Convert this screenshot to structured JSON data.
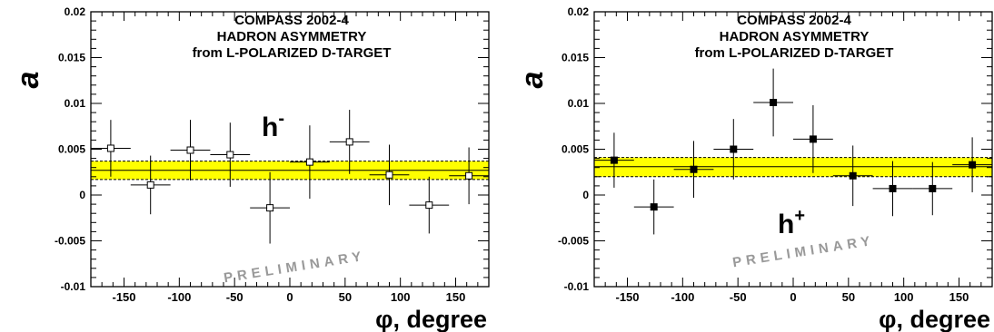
{
  "chart_data": [
    {
      "type": "scatter",
      "header": [
        "COMPASS 2002-4",
        "HADRON ASYMMETRY",
        "from L-POLARIZED D-TARGET"
      ],
      "ylabel": "a",
      "xlabel": "φ, degree",
      "particle": "h",
      "charge": "-",
      "watermark": "PRELIMINARY",
      "marker": "open-square",
      "xlim": [
        -180,
        180
      ],
      "ylim": [
        -0.01,
        0.02
      ],
      "xticks": [
        -150,
        -100,
        -50,
        0,
        50,
        100,
        150
      ],
      "yticks": [
        -0.01,
        -0.005,
        0,
        0.005,
        0.01,
        0.015,
        0.02
      ],
      "ytick_labels": [
        "-0.01",
        "-0.005",
        "0",
        "0.005",
        "0.01",
        "0.015",
        "0.02"
      ],
      "fit": {
        "mean": 0.0027,
        "band": [
          0.0017,
          0.0037
        ],
        "band_color": "#ffff00"
      },
      "points": [
        {
          "x": -162,
          "y": 0.0051,
          "xerr": 18,
          "yerr": 0.0031
        },
        {
          "x": -126,
          "y": 0.0011,
          "xerr": 18,
          "yerr": 0.0032
        },
        {
          "x": -90,
          "y": 0.0049,
          "xerr": 18,
          "yerr": 0.0033
        },
        {
          "x": -54,
          "y": 0.0044,
          "xerr": 18,
          "yerr": 0.0035
        },
        {
          "x": -18,
          "y": -0.0014,
          "xerr": 18,
          "yerr": 0.0039
        },
        {
          "x": 18,
          "y": 0.0036,
          "xerr": 18,
          "yerr": 0.004
        },
        {
          "x": 54,
          "y": 0.0058,
          "xerr": 18,
          "yerr": 0.0035
        },
        {
          "x": 90,
          "y": 0.0022,
          "xerr": 18,
          "yerr": 0.0033
        },
        {
          "x": 126,
          "y": -0.0011,
          "xerr": 18,
          "yerr": 0.0031
        },
        {
          "x": 162,
          "y": 0.0021,
          "xerr": 18,
          "yerr": 0.0031
        }
      ]
    },
    {
      "type": "scatter",
      "header": [
        "COMPASS 2002-4",
        "HADRON ASYMMETRY",
        "from L-POLARIZED D-TARGET"
      ],
      "ylabel": "a",
      "xlabel": "φ, degree",
      "particle": "h",
      "charge": "+",
      "watermark": "PRELIMINARY",
      "marker": "filled-square",
      "xlim": [
        -180,
        180
      ],
      "ylim": [
        -0.01,
        0.02
      ],
      "xticks": [
        -150,
        -100,
        -50,
        0,
        50,
        100,
        150
      ],
      "yticks": [
        -0.01,
        -0.005,
        0,
        0.005,
        0.01,
        0.015,
        0.02
      ],
      "ytick_labels": [
        "-0.01",
        "-0.005",
        "0",
        "0.005",
        "0.01",
        "0.015",
        "0.02"
      ],
      "fit": {
        "mean": 0.0031,
        "band": [
          0.002,
          0.0041
        ],
        "band_color": "#ffff00"
      },
      "points": [
        {
          "x": -162,
          "y": 0.0038,
          "xerr": 18,
          "yerr": 0.003
        },
        {
          "x": -126,
          "y": -0.0013,
          "xerr": 18,
          "yerr": 0.003
        },
        {
          "x": -90,
          "y": 0.0028,
          "xerr": 18,
          "yerr": 0.0031
        },
        {
          "x": -54,
          "y": 0.005,
          "xerr": 18,
          "yerr": 0.0033
        },
        {
          "x": -18,
          "y": 0.0101,
          "xerr": 18,
          "yerr": 0.0037
        },
        {
          "x": 18,
          "y": 0.0061,
          "xerr": 18,
          "yerr": 0.0037
        },
        {
          "x": 54,
          "y": 0.0021,
          "xerr": 18,
          "yerr": 0.0033
        },
        {
          "x": 90,
          "y": 0.0007,
          "xerr": 18,
          "yerr": 0.003
        },
        {
          "x": 126,
          "y": 0.0007,
          "xerr": 18,
          "yerr": 0.0029
        },
        {
          "x": 162,
          "y": 0.0033,
          "xerr": 18,
          "yerr": 0.003
        }
      ]
    }
  ]
}
